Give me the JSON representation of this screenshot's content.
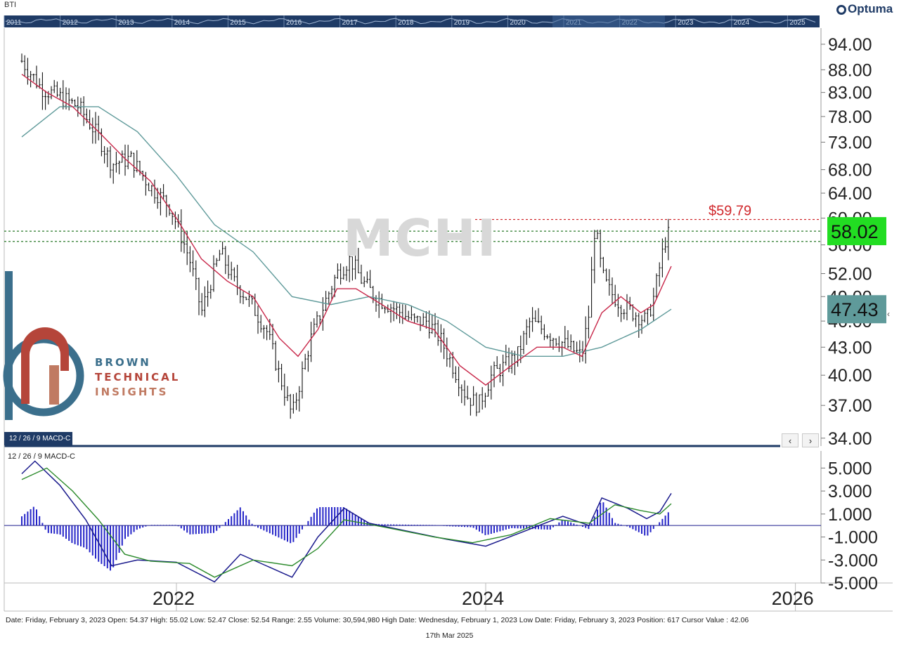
{
  "symbol": "BTI",
  "vendor_logo": "Optuma",
  "watermark": "MCHI",
  "brand": {
    "line1": "BROWN",
    "line2": "TECHNICAL",
    "line3": "INSIGHTS",
    "colors": {
      "blue": "#3b6f8c",
      "red": "#b5453a",
      "tan": "#c07a62"
    }
  },
  "overview_years": [
    "2011",
    "2012",
    "2013",
    "2014",
    "2015",
    "2016",
    "2017",
    "2018",
    "2019",
    "2020",
    "2021",
    "2022",
    "2023",
    "2024",
    "2025"
  ],
  "price_axis": {
    "ticks": [
      "94.00",
      "88.00",
      "83.00",
      "78.00",
      "73.00",
      "68.00",
      "64.00",
      "60.00",
      "56.00",
      "52.00",
      "49.00",
      "46.00",
      "43.00",
      "40.00",
      "37.00",
      "34.00"
    ],
    "scale": "log",
    "range": [
      33.5,
      98
    ]
  },
  "time_axis": {
    "labels": [
      "2022",
      "2024",
      "2026"
    ]
  },
  "levels": {
    "target_label": "$59.79",
    "target_value": 59.79,
    "current_label": "58.02",
    "current_value": 58.02,
    "support_value": 56.5,
    "ma_label": "47.43",
    "ma_value": 47.43
  },
  "macd": {
    "label": "12 / 26 / 9 MACD-C",
    "tab_label": "12 / 26 / 9 MACD-C",
    "ticks": [
      "5.000",
      "3.000",
      "1.000",
      "-1.000",
      "-3.000",
      "-5.000"
    ],
    "range": [
      -5,
      6
    ]
  },
  "colors": {
    "up_down_bars": "#111111",
    "ma_fast": "#c8284a",
    "ma_slow": "#5f9a9a",
    "target_line": "#d0282c",
    "support_lines": "#2a7a2a",
    "current_box": "#22dd22",
    "ma_box": "#5f9a9a",
    "macd_line": "#1a1a8c",
    "signal_line": "#2b8a2b",
    "histogram": "#2424c8",
    "overview_band": "#1f3b66"
  },
  "status_bar": "Date: Friday, February 3, 2023 Open: 54.37 High: 55.02 Low: 52.47 Close: 52.54 Range: 2.55 Volume: 30,594,980 High Date: Wednesday, February 1, 2023 Low Date: Friday, February 3, 2023 Position: 617 Cursor Value : 42.06",
  "footer_date": "17th Mar 2025",
  "chart_data": {
    "type": "line",
    "title": "",
    "series": [
      {
        "name": "",
        "points": [
          [
            "2021-01-01",
            90
          ],
          [
            "2021-02-15",
            84
          ],
          [
            "2021-04-01",
            82
          ],
          [
            "2021-05-15",
            80
          ],
          [
            "2021-07-01",
            74
          ],
          [
            "2021-08-01",
            69
          ],
          [
            "2021-09-15",
            70
          ],
          [
            "2021-11-01",
            65
          ],
          [
            "2021-12-15",
            62
          ],
          [
            "2022-02-01",
            54
          ],
          [
            "2022-03-01",
            47
          ],
          [
            "2022-04-15",
            55
          ],
          [
            "2022-05-15",
            51
          ],
          [
            "2022-06-15",
            49
          ],
          [
            "2022-08-01",
            45
          ],
          [
            "2022-09-01",
            40
          ],
          [
            "2022-10-01",
            36
          ],
          [
            "2022-11-15",
            44
          ],
          [
            "2023-01-15",
            52
          ],
          [
            "2023-02-15",
            54
          ],
          [
            "2023-03-15",
            51
          ],
          [
            "2023-04-15",
            49
          ],
          [
            "2023-05-15",
            48
          ],
          [
            "2023-06-15",
            47
          ],
          [
            "2023-07-15",
            46
          ],
          [
            "2023-08-15",
            46
          ],
          [
            "2023-09-15",
            44
          ],
          [
            "2023-10-15",
            41
          ],
          [
            "2023-11-15",
            38
          ],
          [
            "2023-12-15",
            37
          ],
          [
            "2024-01-15",
            40
          ],
          [
            "2024-02-15",
            41
          ],
          [
            "2024-03-15",
            42
          ],
          [
            "2024-04-15",
            46
          ],
          [
            "2024-05-15",
            45
          ],
          [
            "2024-06-15",
            44
          ],
          [
            "2024-07-15",
            43
          ],
          [
            "2024-08-15",
            42
          ],
          [
            "2024-09-01",
            47
          ],
          [
            "2024-09-15",
            59
          ],
          [
            "2024-10-01",
            52
          ],
          [
            "2024-10-15",
            50
          ],
          [
            "2024-11-15",
            48
          ],
          [
            "2024-12-15",
            47
          ],
          [
            "2025-01-15",
            46
          ],
          [
            "2025-02-01",
            49
          ],
          [
            "2025-02-15",
            53
          ],
          [
            "2025-03-01",
            57
          ],
          [
            "2025-03-14",
            58
          ]
        ]
      },
      {
        "name": "",
        "points": [
          [
            "2021-01-01",
            87
          ],
          [
            "2021-03-01",
            83
          ],
          [
            "2021-05-01",
            80
          ],
          [
            "2021-07-01",
            75
          ],
          [
            "2021-09-01",
            70
          ],
          [
            "2021-11-01",
            66
          ],
          [
            "2022-01-01",
            60
          ],
          [
            "2022-03-01",
            54
          ],
          [
            "2022-05-01",
            51
          ],
          [
            "2022-07-01",
            49
          ],
          [
            "2022-09-01",
            44
          ],
          [
            "2022-10-15",
            42
          ],
          [
            "2022-12-01",
            45
          ],
          [
            "2023-01-15",
            50
          ],
          [
            "2023-03-01",
            50
          ],
          [
            "2023-05-01",
            48
          ],
          [
            "2023-07-01",
            46
          ],
          [
            "2023-09-01",
            45
          ],
          [
            "2023-11-01",
            41
          ],
          [
            "2024-01-01",
            39
          ],
          [
            "2024-03-01",
            41
          ],
          [
            "2024-05-01",
            43
          ],
          [
            "2024-07-01",
            43
          ],
          [
            "2024-08-15",
            42
          ],
          [
            "2024-10-01",
            47
          ],
          [
            "2024-11-15",
            49
          ],
          [
            "2025-01-01",
            47
          ],
          [
            "2025-02-01",
            48
          ],
          [
            "2025-03-14",
            53
          ]
        ]
      },
      {
        "name": "",
        "points": [
          [
            "2021-01-01",
            74
          ],
          [
            "2021-04-01",
            80
          ],
          [
            "2021-07-01",
            80
          ],
          [
            "2021-10-01",
            75
          ],
          [
            "2022-01-01",
            67
          ],
          [
            "2022-04-01",
            59
          ],
          [
            "2022-07-01",
            55
          ],
          [
            "2022-10-01",
            49
          ],
          [
            "2023-01-01",
            48
          ],
          [
            "2023-04-01",
            49
          ],
          [
            "2023-07-01",
            48
          ],
          [
            "2023-10-01",
            46
          ],
          [
            "2024-01-01",
            43
          ],
          [
            "2024-04-01",
            42
          ],
          [
            "2024-07-01",
            42
          ],
          [
            "2024-10-01",
            43
          ],
          [
            "2025-01-01",
            45
          ],
          [
            "2025-03-14",
            47.43
          ]
        ]
      }
    ],
    "macd": [
      [
        "2021-01-01",
        4.5
      ],
      [
        "2021-02-01",
        5.6
      ],
      [
        "2021-04-01",
        3.5
      ],
      [
        "2021-06-01",
        0.5
      ],
      [
        "2021-08-01",
        -3.5
      ],
      [
        "2021-10-01",
        -3.0
      ],
      [
        "2022-01-01",
        -3.2
      ],
      [
        "2022-04-01",
        -4.9
      ],
      [
        "2022-06-01",
        -2.5
      ],
      [
        "2022-08-01",
        -3.5
      ],
      [
        "2022-10-01",
        -4.5
      ],
      [
        "2022-12-01",
        -1.0
      ],
      [
        "2023-02-01",
        1.5
      ],
      [
        "2023-04-01",
        0.2
      ],
      [
        "2023-07-01",
        -0.5
      ],
      [
        "2023-10-01",
        -1.2
      ],
      [
        "2024-01-01",
        -1.8
      ],
      [
        "2024-04-01",
        -0.5
      ],
      [
        "2024-07-01",
        0.8
      ],
      [
        "2024-09-01",
        0.0
      ],
      [
        "2024-10-01",
        2.4
      ],
      [
        "2024-12-01",
        1.5
      ],
      [
        "2025-01-15",
        0.6
      ],
      [
        "2025-02-15",
        1.2
      ],
      [
        "2025-03-14",
        2.8
      ]
    ],
    "signal": [
      [
        "2021-01-01",
        4.0
      ],
      [
        "2021-03-01",
        5.0
      ],
      [
        "2021-05-01",
        3.0
      ],
      [
        "2021-07-01",
        0.5
      ],
      [
        "2021-09-01",
        -2.5
      ],
      [
        "2021-11-01",
        -3.1
      ],
      [
        "2022-02-01",
        -3.3
      ],
      [
        "2022-04-01",
        -4.5
      ],
      [
        "2022-07-01",
        -3.0
      ],
      [
        "2022-10-01",
        -3.5
      ],
      [
        "2022-12-01",
        -2.0
      ],
      [
        "2023-02-01",
        0.5
      ],
      [
        "2023-05-01",
        -0.1
      ],
      [
        "2023-09-01",
        -1.0
      ],
      [
        "2023-12-01",
        -1.5
      ],
      [
        "2024-03-01",
        -0.8
      ],
      [
        "2024-06-01",
        0.6
      ],
      [
        "2024-09-01",
        0.2
      ],
      [
        "2024-11-01",
        1.8
      ],
      [
        "2025-01-01",
        1.3
      ],
      [
        "2025-02-15",
        1.0
      ],
      [
        "2025-03-14",
        1.9
      ]
    ]
  }
}
